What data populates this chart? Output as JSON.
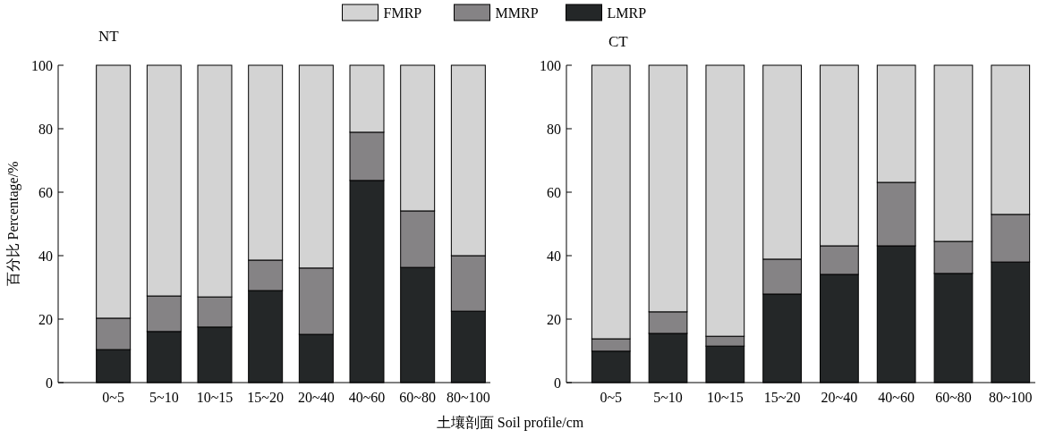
{
  "chart_data": [
    {
      "type": "bar",
      "title": "NT",
      "stacked": true,
      "legend": "top",
      "ylabel": "百分比 Percentage/%",
      "xlabel": "土壤剖面 Soil profile/cm",
      "categories": [
        "0~5",
        "5~10",
        "10~15",
        "15~20",
        "20~40",
        "40~60",
        "60~80",
        "80~100"
      ],
      "ylim": [
        0,
        100
      ],
      "yticks": [
        0,
        20,
        40,
        60,
        80,
        100
      ],
      "series": [
        {
          "name": "LMRP",
          "color": "#242728",
          "values": [
            10.4,
            16.1,
            17.5,
            29.0,
            15.2,
            63.7,
            36.3,
            22.5
          ]
        },
        {
          "name": "MMRP",
          "color": "#858385",
          "values": [
            9.9,
            11.2,
            9.5,
            9.6,
            20.9,
            15.2,
            17.8,
            17.5
          ]
        },
        {
          "name": "FMRP",
          "color": "#d3d3d3",
          "values": [
            79.7,
            72.7,
            73.0,
            61.4,
            63.9,
            21.1,
            45.9,
            60.0
          ]
        }
      ]
    },
    {
      "type": "bar",
      "title": "CT",
      "stacked": true,
      "categories": [
        "0~5",
        "5~10",
        "10~15",
        "15~20",
        "20~40",
        "40~60",
        "60~80",
        "80~100"
      ],
      "ylim": [
        0,
        100
      ],
      "yticks": [
        0,
        20,
        40,
        60,
        80,
        100
      ],
      "series": [
        {
          "color": "#242728",
          "values": [
            9.9,
            15.5,
            11.5,
            27.9,
            34.1,
            43.1,
            34.4,
            38.0
          ]
        },
        {
          "color": "#858385",
          "values": [
            3.9,
            6.8,
            3.1,
            11.0,
            9.0,
            20.0,
            10.1,
            15.0
          ]
        },
        {
          "color": "#d3d3d3",
          "values": [
            86.2,
            77.7,
            85.4,
            61.1,
            56.9,
            36.9,
            55.5,
            47.0
          ]
        }
      ]
    }
  ]
}
